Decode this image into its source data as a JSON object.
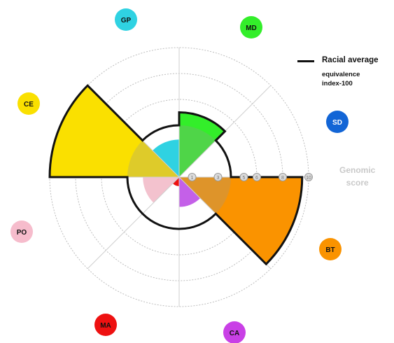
{
  "legend": {
    "line_label": "Racial average",
    "subtitle_line1": "equivalence",
    "subtitle_line2": "index-100"
  },
  "axis_title": {
    "line1": "Genomic",
    "line2": "score"
  },
  "chart_data": {
    "type": "polar-area",
    "radial_max": 10,
    "radial_ticks": [
      1,
      3,
      5,
      6,
      8,
      10
    ],
    "grid": "dotted",
    "legend_placement": "top-right",
    "average_radius": 4,
    "sectors": [
      {
        "label": "MD",
        "start_deg": 0,
        "end_deg": 45,
        "value": 5.0,
        "color": "#33ee2a"
      },
      {
        "label": "BT",
        "start_deg": 90,
        "end_deg": 135,
        "value": 9.5,
        "color": "#fa9300"
      },
      {
        "label": "CA",
        "start_deg": 135,
        "end_deg": 180,
        "value": 2.3,
        "color": "#c460e8"
      },
      {
        "label": "MA",
        "start_deg": 180,
        "end_deg": 225,
        "value": 0.7,
        "color": "#ee1111"
      },
      {
        "label": "PO",
        "start_deg": 225,
        "end_deg": 270,
        "value": 2.8,
        "color": "#f3c2ce"
      },
      {
        "label": "CE",
        "start_deg": 270,
        "end_deg": 315,
        "value": 10.0,
        "color": "#fae000"
      },
      {
        "label": "GP",
        "start_deg": 315,
        "end_deg": 360,
        "value": 2.9,
        "color": "#2fd2e2"
      }
    ],
    "category_badges": [
      {
        "label": "GP",
        "color": "#2fd2e2",
        "text_color": "#111111"
      },
      {
        "label": "MD",
        "color": "#33ee2a",
        "text_color": "#111111"
      },
      {
        "label": "SD",
        "color": "#1265d6",
        "text_color": "#ffffff"
      },
      {
        "label": "BT",
        "color": "#fa9300",
        "text_color": "#111111"
      },
      {
        "label": "CA",
        "color": "#c940e6",
        "text_color": "#111111"
      },
      {
        "label": "MA",
        "color": "#ee1111",
        "text_color": "#111111"
      },
      {
        "label": "PO",
        "color": "#f6bccc",
        "text_color": "#111111"
      },
      {
        "label": "CE",
        "color": "#fae000",
        "text_color": "#111111"
      }
    ]
  }
}
